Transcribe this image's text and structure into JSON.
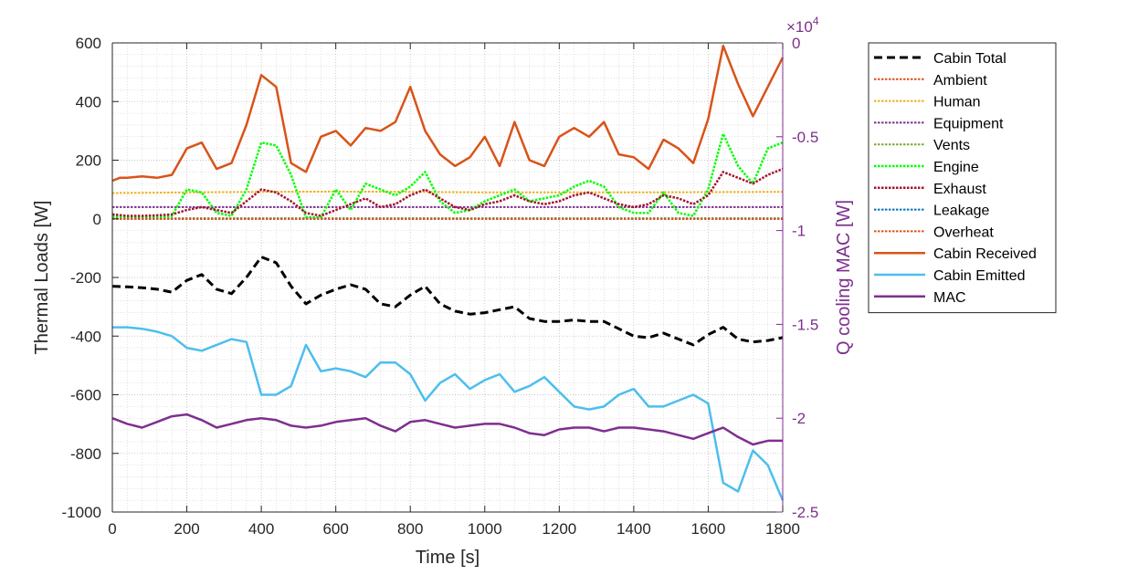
{
  "chart_data": {
    "type": "line",
    "xlabel": "Time [s]",
    "ylabel": "Thermal Loads [W]",
    "y2label": "Q cooling MAC [W]",
    "y2_exponent_label": "×10",
    "y2_exponent_power": "4",
    "xlim": [
      0,
      1800
    ],
    "ylim": [
      -1000,
      600
    ],
    "y2lim": [
      -2.5,
      0
    ],
    "xticks": [
      0,
      200,
      400,
      600,
      800,
      1000,
      1200,
      1400,
      1600,
      1800
    ],
    "yticks": [
      600,
      400,
      200,
      0,
      -200,
      -400,
      -600,
      -800,
      -1000
    ],
    "y2ticks": [
      0,
      -0.5,
      -1,
      -1.5,
      -2,
      -2.5
    ],
    "y2tick_labels": [
      "0",
      "-0.5",
      "-1",
      "-1.5",
      "-2",
      "-2.5"
    ],
    "grid": "on-minor-dotted",
    "legend_position": "outside-right",
    "series": [
      {
        "name": "Cabin Total",
        "axis": "left",
        "color": "#000000",
        "dash": "dashed",
        "width": 3,
        "x": [
          0,
          40,
          80,
          120,
          160,
          200,
          240,
          280,
          320,
          360,
          400,
          440,
          480,
          520,
          560,
          600,
          640,
          680,
          720,
          760,
          800,
          840,
          880,
          920,
          960,
          1000,
          1040,
          1080,
          1120,
          1160,
          1200,
          1240,
          1280,
          1320,
          1360,
          1400,
          1440,
          1480,
          1520,
          1560,
          1600,
          1640,
          1680,
          1720,
          1760,
          1800
        ],
        "y": [
          -230,
          -232,
          -235,
          -240,
          -250,
          -210,
          -190,
          -240,
          -255,
          -200,
          -130,
          -150,
          -230,
          -290,
          -260,
          -240,
          -225,
          -240,
          -290,
          -300,
          -260,
          -230,
          -290,
          -315,
          -325,
          -320,
          -310,
          -300,
          -340,
          -350,
          -350,
          -345,
          -350,
          -350,
          -375,
          -400,
          -405,
          -390,
          -410,
          -430,
          -395,
          -370,
          -410,
          -420,
          -415,
          -405
        ]
      },
      {
        "name": "Ambient",
        "axis": "left",
        "color": "#D95319",
        "dash": "dotted",
        "width": 2,
        "x": [
          0,
          1800
        ],
        "y": [
          0,
          0
        ]
      },
      {
        "name": "Human",
        "axis": "left",
        "color": "#EDB120",
        "dash": "dotted",
        "width": 2,
        "x": [
          0,
          200,
          400,
          600,
          800,
          1000,
          1200,
          1400,
          1600,
          1800
        ],
        "y": [
          88,
          90,
          92,
          93,
          92,
          90,
          90,
          90,
          91,
          92
        ]
      },
      {
        "name": "Equipment",
        "axis": "left",
        "color": "#7E2F8E",
        "dash": "dotted",
        "width": 2,
        "x": [
          0,
          1800
        ],
        "y": [
          40,
          40
        ]
      },
      {
        "name": "Vents",
        "axis": "left",
        "color": "#77AC30",
        "dash": "dotted",
        "width": 2,
        "x": [
          0,
          1800
        ],
        "y": [
          2,
          2
        ]
      },
      {
        "name": "Engine",
        "axis": "left",
        "color": "#00FF00",
        "dash": "dotted",
        "width": 2.5,
        "x": [
          0,
          40,
          80,
          120,
          160,
          200,
          240,
          280,
          320,
          360,
          400,
          440,
          480,
          520,
          560,
          600,
          640,
          680,
          720,
          760,
          800,
          840,
          880,
          920,
          960,
          1000,
          1040,
          1080,
          1120,
          1160,
          1200,
          1240,
          1280,
          1320,
          1360,
          1400,
          1440,
          1480,
          1520,
          1560,
          1600,
          1640,
          1680,
          1720,
          1760,
          1800
        ],
        "y": [
          10,
          5,
          5,
          5,
          10,
          100,
          90,
          20,
          10,
          100,
          260,
          250,
          150,
          5,
          5,
          100,
          30,
          120,
          100,
          80,
          110,
          160,
          60,
          20,
          30,
          60,
          80,
          100,
          60,
          70,
          80,
          110,
          130,
          110,
          40,
          20,
          20,
          90,
          20,
          10,
          100,
          290,
          180,
          120,
          240,
          260
        ]
      },
      {
        "name": "Exhaust",
        "axis": "left",
        "color": "#A2142F",
        "dash": "dotted",
        "width": 2.5,
        "x": [
          0,
          40,
          80,
          120,
          160,
          200,
          240,
          280,
          320,
          360,
          400,
          440,
          480,
          520,
          560,
          600,
          640,
          680,
          720,
          760,
          800,
          840,
          880,
          920,
          960,
          1000,
          1040,
          1080,
          1120,
          1160,
          1200,
          1240,
          1280,
          1320,
          1360,
          1400,
          1440,
          1480,
          1520,
          1560,
          1600,
          1640,
          1680,
          1720,
          1760,
          1800
        ],
        "y": [
          15,
          10,
          10,
          12,
          15,
          30,
          40,
          30,
          20,
          60,
          100,
          90,
          60,
          20,
          10,
          30,
          50,
          70,
          40,
          50,
          80,
          100,
          70,
          40,
          30,
          50,
          60,
          80,
          60,
          50,
          60,
          80,
          90,
          70,
          50,
          40,
          50,
          80,
          70,
          50,
          80,
          160,
          140,
          120,
          150,
          170
        ]
      },
      {
        "name": "Leakage",
        "axis": "left",
        "color": "#0072BD",
        "dash": "dotted",
        "width": 2,
        "x": [
          0,
          1800
        ],
        "y": [
          0,
          0
        ]
      },
      {
        "name": "Overheat",
        "axis": "left",
        "color": "#D95319",
        "dash": "dotted",
        "width": 2,
        "x": [
          0,
          1800
        ],
        "y": [
          0,
          0
        ]
      },
      {
        "name": "Cabin Received",
        "axis": "left",
        "color": "#D95319",
        "dash": "solid",
        "width": 2.5,
        "x": [
          0,
          20,
          40,
          80,
          120,
          160,
          200,
          240,
          280,
          320,
          360,
          400,
          440,
          480,
          520,
          560,
          600,
          640,
          680,
          720,
          760,
          800,
          840,
          880,
          920,
          960,
          1000,
          1040,
          1080,
          1120,
          1160,
          1200,
          1240,
          1280,
          1320,
          1360,
          1400,
          1440,
          1480,
          1520,
          1560,
          1600,
          1640,
          1680,
          1720,
          1760,
          1800
        ],
        "y": [
          130,
          140,
          140,
          145,
          140,
          150,
          240,
          260,
          170,
          190,
          320,
          490,
          450,
          190,
          160,
          280,
          300,
          250,
          310,
          300,
          330,
          450,
          300,
          220,
          180,
          210,
          280,
          180,
          330,
          200,
          180,
          280,
          310,
          280,
          330,
          220,
          210,
          170,
          270,
          240,
          190,
          340,
          590,
          460,
          350,
          450,
          550
        ]
      },
      {
        "name": "Cabin Emitted",
        "axis": "left",
        "color": "#4DBEEE",
        "dash": "solid",
        "width": 2.5,
        "x": [
          0,
          40,
          80,
          120,
          160,
          200,
          240,
          280,
          320,
          360,
          400,
          440,
          480,
          520,
          560,
          600,
          640,
          680,
          720,
          760,
          800,
          840,
          880,
          920,
          960,
          1000,
          1040,
          1080,
          1120,
          1160,
          1200,
          1240,
          1280,
          1320,
          1360,
          1400,
          1440,
          1480,
          1520,
          1560,
          1600,
          1640,
          1680,
          1720,
          1760,
          1800
        ],
        "y": [
          -370,
          -370,
          -375,
          -385,
          -400,
          -440,
          -450,
          -430,
          -410,
          -420,
          -600,
          -600,
          -570,
          -430,
          -520,
          -510,
          -520,
          -540,
          -490,
          -490,
          -530,
          -620,
          -560,
          -530,
          -580,
          -550,
          -530,
          -590,
          -570,
          -540,
          -590,
          -640,
          -650,
          -640,
          -600,
          -580,
          -640,
          -640,
          -620,
          -600,
          -630,
          -900,
          -930,
          -790,
          -840,
          -960
        ]
      },
      {
        "name": "MAC",
        "axis": "right",
        "color": "#7E2F8E",
        "dash": "solid",
        "width": 2.5,
        "x": [
          0,
          40,
          80,
          120,
          160,
          200,
          240,
          280,
          320,
          360,
          400,
          440,
          480,
          520,
          560,
          600,
          640,
          680,
          720,
          760,
          800,
          840,
          880,
          920,
          960,
          1000,
          1040,
          1080,
          1120,
          1160,
          1200,
          1240,
          1280,
          1320,
          1360,
          1400,
          1440,
          1480,
          1520,
          1560,
          1600,
          1640,
          1680,
          1720,
          1760,
          1800
        ],
        "y": [
          -2.0,
          -2.03,
          -2.05,
          -2.02,
          -1.99,
          -1.98,
          -2.01,
          -2.05,
          -2.03,
          -2.01,
          -2.0,
          -2.01,
          -2.04,
          -2.05,
          -2.04,
          -2.02,
          -2.01,
          -2.0,
          -2.04,
          -2.07,
          -2.02,
          -2.01,
          -2.03,
          -2.05,
          -2.04,
          -2.03,
          -2.03,
          -2.05,
          -2.08,
          -2.09,
          -2.06,
          -2.05,
          -2.05,
          -2.07,
          -2.05,
          -2.05,
          -2.06,
          -2.07,
          -2.09,
          -2.11,
          -2.08,
          -2.05,
          -2.1,
          -2.14,
          -2.12,
          -2.12
        ]
      }
    ]
  }
}
